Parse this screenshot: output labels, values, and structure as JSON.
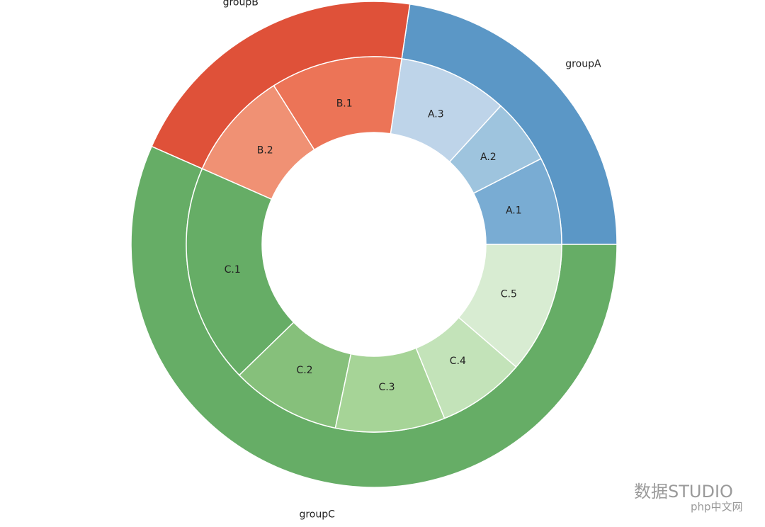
{
  "chart_data": {
    "type": "nested-pie",
    "outer": {
      "labels": [
        "groupA",
        "groupB",
        "groupC"
      ],
      "values": [
        12,
        11,
        30
      ],
      "colors": [
        "#5b97c6",
        "#df5139",
        "#66ad66"
      ]
    },
    "inner": {
      "labels": [
        "A.1",
        "A.2",
        "A.3",
        "B.1",
        "B.2",
        "C.1",
        "C.2",
        "C.3",
        "C.4",
        "C.5"
      ],
      "values": [
        4,
        3,
        5,
        6,
        5,
        10,
        5,
        5,
        4,
        6
      ],
      "colors": [
        "#79acd3",
        "#9ec4de",
        "#bed4e9",
        "#ec7457",
        "#f09174",
        "#66ad66",
        "#86c07b",
        "#a6d497",
        "#c3e3b9",
        "#d8ecd2"
      ]
    },
    "watermark": [
      "数据STUDIO",
      "php中文网"
    ]
  }
}
